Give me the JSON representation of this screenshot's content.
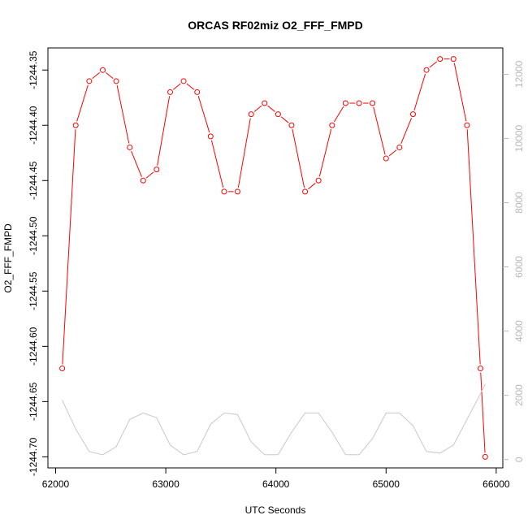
{
  "chart_data": {
    "type": "line",
    "title": "ORCAS RF02miz O2_FFF_FMPD",
    "xlabel": "UTC Seconds",
    "ylabel": "O2_FFF_FMPD",
    "xlim": [
      61930,
      66060
    ],
    "ylim": [
      -1244.71,
      -1244.33
    ],
    "y2lim": [
      -260,
      12820
    ],
    "x_ticks": [
      62000,
      63000,
      64000,
      65000,
      66000
    ],
    "y_ticks": [
      -1244.35,
      -1244.4,
      -1244.45,
      -1244.5,
      -1244.55,
      -1244.6,
      -1244.65,
      -1244.7
    ],
    "y2_ticks": [
      0,
      2000,
      4000,
      6000,
      8000,
      10000,
      12000
    ],
    "grid": false,
    "series": [
      {
        "axis": "left",
        "color": "#ff0000",
        "markers": "open-circle",
        "x": [
          62060,
          62182,
          62305,
          62428,
          62550,
          62673,
          62795,
          62917,
          63040,
          63162,
          63285,
          63407,
          63530,
          63652,
          63775,
          63897,
          64020,
          64142,
          64265,
          64387,
          64510,
          64632,
          64755,
          64877,
          65000,
          65122,
          65245,
          65367,
          65490,
          65612,
          65735,
          65857,
          65900
        ],
        "y": [
          -1244.62,
          -1244.4,
          -1244.36,
          -1244.35,
          -1244.36,
          -1244.42,
          -1244.45,
          -1244.44,
          -1244.37,
          -1244.36,
          -1244.37,
          -1244.41,
          -1244.46,
          -1244.46,
          -1244.39,
          -1244.38,
          -1244.39,
          -1244.4,
          -1244.46,
          -1244.45,
          -1244.4,
          -1244.38,
          -1244.38,
          -1244.38,
          -1244.43,
          -1244.42,
          -1244.39,
          -1244.35,
          -1244.34,
          -1244.34,
          -1244.4,
          -1244.62,
          -1244.7
        ]
      },
      {
        "axis": "right",
        "color": "#c8c8c8",
        "markers": "none",
        "x": [
          62060,
          62182,
          62305,
          62428,
          62550,
          62673,
          62795,
          62917,
          63040,
          63162,
          63285,
          63407,
          63530,
          63652,
          63775,
          63897,
          64020,
          64142,
          64265,
          64387,
          64510,
          64632,
          64755,
          64877,
          65000,
          65122,
          65245,
          65367,
          65490,
          65612,
          65735,
          65857,
          65900
        ],
        "y": [
          1850,
          950,
          250,
          150,
          400,
          1250,
          1450,
          1300,
          450,
          150,
          250,
          1100,
          1450,
          1400,
          550,
          150,
          150,
          850,
          1450,
          1450,
          850,
          150,
          150,
          650,
          1450,
          1450,
          1050,
          250,
          200,
          450,
          1250,
          2050,
          2350
        ]
      }
    ]
  }
}
